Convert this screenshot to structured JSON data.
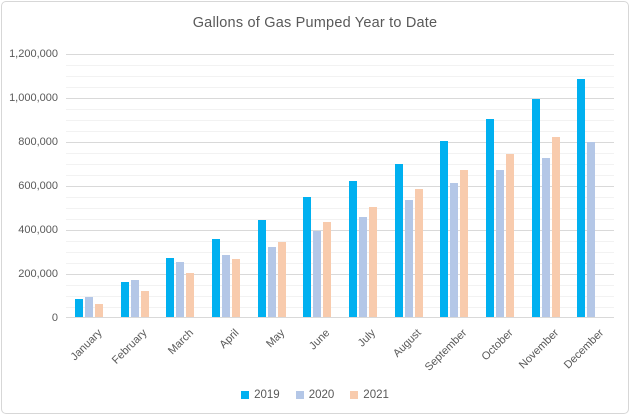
{
  "window": {
    "background": "#ffffff",
    "border_color": "#d7d7d7"
  },
  "chart_data": {
    "type": "bar",
    "title": "Gallons of Gas Pumped Year to Date",
    "categories": [
      "January",
      "February",
      "March",
      "April",
      "May",
      "June",
      "July",
      "August",
      "September",
      "October",
      "November",
      "December"
    ],
    "series": [
      {
        "name": "2019",
        "color": "#00b0f0",
        "values": [
          80000,
          160000,
          270000,
          355000,
          440000,
          545000,
          620000,
          695000,
          800000,
          900000,
          990000,
          1080000
        ]
      },
      {
        "name": "2020",
        "color": "#b4c7e7",
        "values": [
          90000,
          170000,
          250000,
          280000,
          320000,
          390000,
          455000,
          530000,
          610000,
          670000,
          725000,
          795000
        ]
      },
      {
        "name": "2021",
        "color": "#f8cbad",
        "values": [
          60000,
          120000,
          200000,
          265000,
          340000,
          430000,
          500000,
          580000,
          670000,
          740000,
          820000,
          null
        ]
      }
    ],
    "xlabel": "",
    "ylabel": "",
    "ylim": [
      0,
      1200000
    ],
    "y_major_interval": 200000,
    "y_minor_interval": 50000,
    "y_tick_labels": [
      "0",
      "200,000",
      "400,000",
      "600,000",
      "800,000",
      "1,000,000",
      "1,200,000"
    ],
    "grid": "major and minor horizontal gridlines",
    "legend_position": "bottom-center",
    "styles": {
      "title_color": "#595959",
      "tick_label_color": "#595959",
      "major_gridline_color": "#d9d9d9",
      "minor_gridline_color": "#f2f2f2",
      "axis_line_color": "#d9d9d9"
    }
  }
}
